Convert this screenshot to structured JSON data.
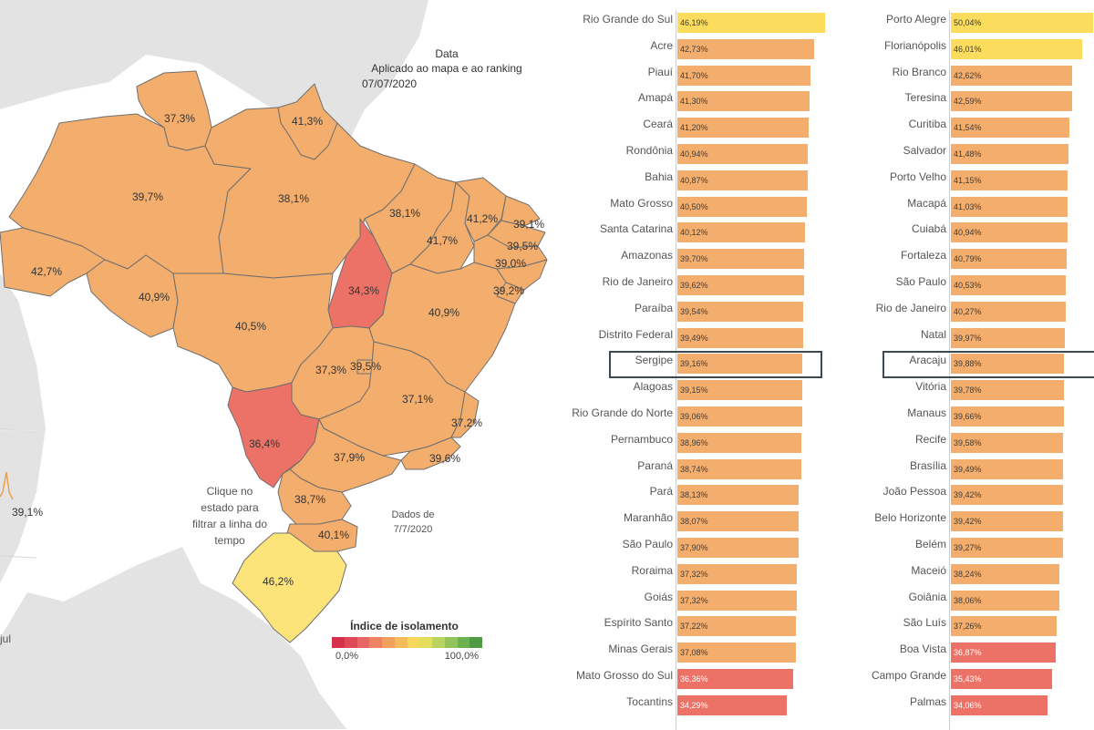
{
  "dashboard": {
    "date_title": "Data",
    "date_subtitle": "Aplicado ao mapa e ao ranking",
    "date_value": "07/07/2020",
    "filter_tip": "Clique no estado para filtrar a linha do tempo",
    "data_note": "Dados de 7/7/2020",
    "timeline_partial_value": "39,1%",
    "timeline_partial_axis": "jul"
  },
  "map": {
    "labels": [
      {
        "id": "rr",
        "label": "37,3%"
      },
      {
        "id": "ap",
        "label": "41,3%"
      },
      {
        "id": "am",
        "label": "39,7%"
      },
      {
        "id": "pa",
        "label": "38,1%"
      },
      {
        "id": "ma",
        "label": "38,1%"
      },
      {
        "id": "ce",
        "label": "41,2%"
      },
      {
        "id": "rn",
        "label": "39,1%"
      },
      {
        "id": "pb",
        "label": "39,5%"
      },
      {
        "id": "pi",
        "label": "41,7%"
      },
      {
        "id": "pe",
        "label": "39,0%"
      },
      {
        "id": "ac",
        "label": "42,7%"
      },
      {
        "id": "ro",
        "label": "40,9%"
      },
      {
        "id": "to",
        "label": "34,3%"
      },
      {
        "id": "al",
        "label": "39,2%"
      },
      {
        "id": "mt",
        "label": "40,5%"
      },
      {
        "id": "ba",
        "label": "40,9%"
      },
      {
        "id": "go",
        "label": "37,3%"
      },
      {
        "id": "df",
        "label": "39,5%"
      },
      {
        "id": "mg",
        "label": "37,1%"
      },
      {
        "id": "es",
        "label": "37,2%"
      },
      {
        "id": "ms",
        "label": "36,4%"
      },
      {
        "id": "sp",
        "label": "37,9%"
      },
      {
        "id": "rj",
        "label": "39,6%"
      },
      {
        "id": "pr",
        "label": "38,7%"
      },
      {
        "id": "sc",
        "label": "40,1%"
      },
      {
        "id": "rs",
        "label": "46,2%"
      }
    ]
  },
  "legend": {
    "title": "Índice de isolamento",
    "min_label": "0,0%",
    "max_label": "100,0%",
    "colors": [
      "#d6304a",
      "#df4a56",
      "#e76565",
      "#ee8362",
      "#f2a05e",
      "#f4bc5a",
      "#f7d85a",
      "#e3de5c",
      "#bbd460",
      "#92c45b",
      "#6cb24f",
      "#4f9b43"
    ]
  },
  "colors": {
    "orange": "#f3ad6c",
    "red": "#ec7268",
    "yellow": "#fcdc5d",
    "yellow_rs": "#fce47b",
    "highlight_border": "#3a4a52"
  },
  "ranking_states": [
    {
      "name": "Rio Grande do Sul",
      "value": 46.19,
      "label": "46,19%"
    },
    {
      "name": "Acre",
      "value": 42.73,
      "label": "42,73%"
    },
    {
      "name": "Piauí",
      "value": 41.7,
      "label": "41,70%"
    },
    {
      "name": "Amapá",
      "value": 41.3,
      "label": "41,30%"
    },
    {
      "name": "Ceará",
      "value": 41.2,
      "label": "41,20%"
    },
    {
      "name": "Rondônia",
      "value": 40.94,
      "label": "40,94%"
    },
    {
      "name": "Bahia",
      "value": 40.87,
      "label": "40,87%"
    },
    {
      "name": "Mato Grosso",
      "value": 40.5,
      "label": "40,50%"
    },
    {
      "name": "Santa Catarina",
      "value": 40.12,
      "label": "40,12%"
    },
    {
      "name": "Amazonas",
      "value": 39.7,
      "label": "39,70%"
    },
    {
      "name": "Rio de Janeiro",
      "value": 39.62,
      "label": "39,62%"
    },
    {
      "name": "Paraíba",
      "value": 39.54,
      "label": "39,54%"
    },
    {
      "name": "Distrito Federal",
      "value": 39.49,
      "label": "39,49%"
    },
    {
      "name": "Sergipe",
      "value": 39.16,
      "label": "39,16%"
    },
    {
      "name": "Alagoas",
      "value": 39.15,
      "label": "39,15%"
    },
    {
      "name": "Rio Grande do Norte",
      "value": 39.06,
      "label": "39,06%"
    },
    {
      "name": "Pernambuco",
      "value": 38.96,
      "label": "38,96%"
    },
    {
      "name": "Paraná",
      "value": 38.74,
      "label": "38,74%"
    },
    {
      "name": "Pará",
      "value": 38.13,
      "label": "38,13%"
    },
    {
      "name": "Maranhão",
      "value": 38.07,
      "label": "38,07%"
    },
    {
      "name": "São Paulo",
      "value": 37.9,
      "label": "37,90%"
    },
    {
      "name": "Roraima",
      "value": 37.32,
      "label": "37,32%"
    },
    {
      "name": "Goiás",
      "value": 37.32,
      "label": "37,32%"
    },
    {
      "name": "Espírito Santo",
      "value": 37.22,
      "label": "37,22%"
    },
    {
      "name": "Minas Gerais",
      "value": 37.08,
      "label": "37,08%"
    },
    {
      "name": "Mato Grosso do Sul",
      "value": 36.36,
      "label": "36,36%"
    },
    {
      "name": "Tocantins",
      "value": 34.29,
      "label": "34,29%"
    }
  ],
  "ranking_capitals": [
    {
      "name": "Porto Alegre",
      "value": 50.04,
      "label": "50,04%"
    },
    {
      "name": "Florianópolis",
      "value": 46.01,
      "label": "46,01%"
    },
    {
      "name": "Rio Branco",
      "value": 42.62,
      "label": "42,62%"
    },
    {
      "name": "Teresina",
      "value": 42.59,
      "label": "42,59%"
    },
    {
      "name": "Curitiba",
      "value": 41.54,
      "label": "41,54%"
    },
    {
      "name": "Salvador",
      "value": 41.48,
      "label": "41,48%"
    },
    {
      "name": "Porto Velho",
      "value": 41.15,
      "label": "41,15%"
    },
    {
      "name": "Macapá",
      "value": 41.03,
      "label": "41,03%"
    },
    {
      "name": "Cuiabá",
      "value": 40.94,
      "label": "40,94%"
    },
    {
      "name": "Fortaleza",
      "value": 40.79,
      "label": "40,79%"
    },
    {
      "name": "São Paulo",
      "value": 40.53,
      "label": "40,53%"
    },
    {
      "name": "Rio de Janeiro",
      "value": 40.27,
      "label": "40,27%"
    },
    {
      "name": "Natal",
      "value": 39.97,
      "label": "39,97%"
    },
    {
      "name": "Aracaju",
      "value": 39.88,
      "label": "39,88%"
    },
    {
      "name": "Vitória",
      "value": 39.78,
      "label": "39,78%"
    },
    {
      "name": "Manaus",
      "value": 39.66,
      "label": "39,66%"
    },
    {
      "name": "Recife",
      "value": 39.58,
      "label": "39,58%"
    },
    {
      "name": "Brasília",
      "value": 39.49,
      "label": "39,49%"
    },
    {
      "name": "João Pessoa",
      "value": 39.42,
      "label": "39,42%"
    },
    {
      "name": "Belo Horizonte",
      "value": 39.42,
      "label": "39,42%"
    },
    {
      "name": "Belém",
      "value": 39.27,
      "label": "39,27%"
    },
    {
      "name": "Maceió",
      "value": 38.24,
      "label": "38,24%"
    },
    {
      "name": "Goiânia",
      "value": 38.06,
      "label": "38,06%"
    },
    {
      "name": "São Luís",
      "value": 37.26,
      "label": "37,26%"
    },
    {
      "name": "Boa Vista",
      "value": 36.87,
      "label": "36,87%"
    },
    {
      "name": "Campo Grande",
      "value": 35.43,
      "label": "35,43%"
    },
    {
      "name": "Palmas",
      "value": 34.06,
      "label": "34,06%"
    }
  ]
}
